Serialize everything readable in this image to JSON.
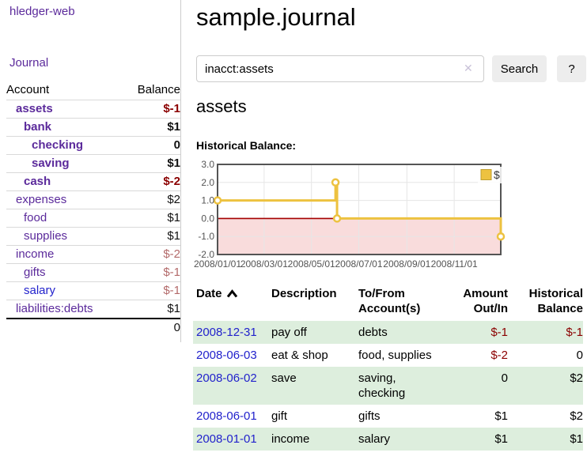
{
  "app_title": "hledger-web",
  "sidebar": {
    "journal_link": "Journal",
    "accounts": {
      "col_account": "Account",
      "col_balance": "Balance",
      "rows": [
        {
          "name": "assets",
          "indent": 1,
          "strong": true,
          "link_color": "purple",
          "balance": "$-1",
          "balance_class": "neg-strong"
        },
        {
          "name": "bank",
          "indent": 2,
          "strong": true,
          "link_color": "purple",
          "balance": "$1",
          "balance_class": "pos-strong"
        },
        {
          "name": "checking",
          "indent": 3,
          "strong": true,
          "link_color": "purple",
          "balance": "0",
          "balance_class": "pos-strong"
        },
        {
          "name": "saving",
          "indent": 3,
          "strong": true,
          "link_color": "purple",
          "balance": "$1",
          "balance_class": "pos-strong"
        },
        {
          "name": "cash",
          "indent": 2,
          "strong": true,
          "link_color": "purple",
          "balance": "$-2",
          "balance_class": "neg-strong"
        },
        {
          "name": "expenses",
          "indent": 1,
          "strong": false,
          "link_color": "purple",
          "balance": "$2",
          "balance_class": "plain"
        },
        {
          "name": "food",
          "indent": 2,
          "strong": false,
          "link_color": "purple",
          "balance": "$1",
          "balance_class": "plain"
        },
        {
          "name": "supplies",
          "indent": 2,
          "strong": false,
          "link_color": "purple",
          "balance": "$1",
          "balance_class": "plain"
        },
        {
          "name": "income",
          "indent": 1,
          "strong": false,
          "link_color": "purple",
          "balance": "$-2",
          "balance_class": "neg-muted"
        },
        {
          "name": "gifts",
          "indent": 2,
          "strong": false,
          "link_color": "purple",
          "balance": "$-1",
          "balance_class": "neg-muted"
        },
        {
          "name": "salary",
          "indent": 2,
          "strong": false,
          "link_color": "blue",
          "balance": "$-1",
          "balance_class": "neg-muted"
        },
        {
          "name": "liabilities:debts",
          "indent": 1,
          "strong": false,
          "link_color": "purple",
          "balance": "$1",
          "balance_class": "plain"
        }
      ],
      "total": "0"
    }
  },
  "main": {
    "title": "sample.journal",
    "search": {
      "query": "inacct:assets",
      "clear_icon": "✕",
      "search_button": "Search",
      "help_button": "?"
    },
    "heading": "assets",
    "chart_title": "Historical Balance:"
  },
  "chart_data": {
    "type": "line",
    "step": true,
    "title": "Historical Balance",
    "x_range": [
      "2008-01-01",
      "2008-12-31"
    ],
    "x_ticks": [
      "2008/01/01",
      "2008/03/01",
      "2008/05/01",
      "2008/07/01",
      "2008/09/01",
      "2008/11/01"
    ],
    "y_ticks": [
      "3.0",
      "2.0",
      "1.0",
      "0.0",
      "-1.0",
      "-2.0"
    ],
    "ylim": [
      -2.0,
      3.0
    ],
    "grid": true,
    "legend_position": "top-right",
    "series": [
      {
        "name": "$",
        "color": "#edc240",
        "marker": "open-circle",
        "points": [
          {
            "date": "2008-01-01",
            "value": 1.0
          },
          {
            "date": "2008-06-01",
            "value": 2.0
          },
          {
            "date": "2008-06-03",
            "value": 0.0
          },
          {
            "date": "2008-12-31",
            "value": -1.0
          }
        ]
      }
    ],
    "negative_region_color": "#f9dcdc",
    "zero_line_color": "#a40000",
    "grid_color": "#e6e6e6",
    "border_color": "#545454",
    "tick_label_color": "#545454"
  },
  "register": {
    "headers": {
      "date": "Date",
      "description": "Description",
      "tofrom": "To/From Account(s)",
      "amount": "Amount Out/In",
      "balance": "Historical Balance"
    },
    "rows": [
      {
        "date": "2008-12-31",
        "description": "pay off",
        "accounts": "debts",
        "amount": "$-1",
        "amount_neg": true,
        "balance": "$-1",
        "balance_neg": true
      },
      {
        "date": "2008-06-03",
        "description": "eat & shop",
        "accounts": "food, supplies",
        "amount": "$-2",
        "amount_neg": true,
        "balance": "0",
        "balance_neg": false
      },
      {
        "date": "2008-06-02",
        "description": "save",
        "accounts": "saving, checking",
        "amount": "0",
        "amount_neg": false,
        "balance": "$2",
        "balance_neg": false
      },
      {
        "date": "2008-06-01",
        "description": "gift",
        "accounts": "gifts",
        "amount": "$1",
        "amount_neg": false,
        "balance": "$2",
        "balance_neg": false
      },
      {
        "date": "2008-01-01",
        "description": "income",
        "accounts": "salary",
        "amount": "$1",
        "amount_neg": false,
        "balance": "$1",
        "balance_neg": false
      }
    ]
  }
}
